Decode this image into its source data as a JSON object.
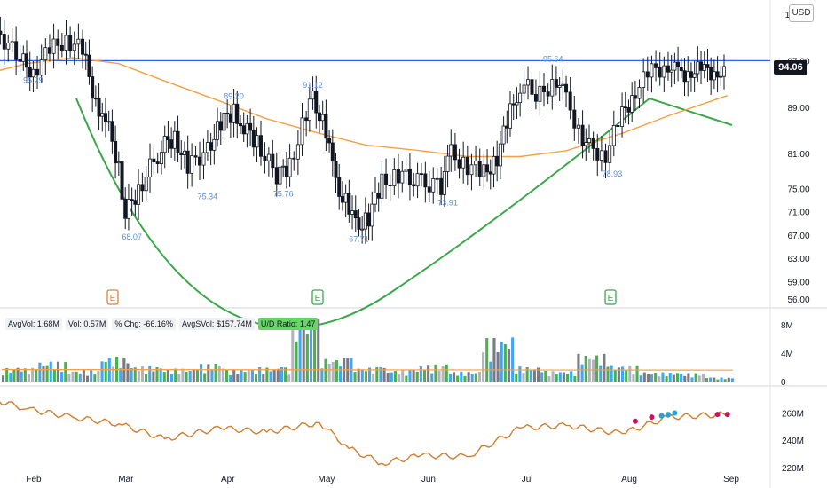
{
  "header": {
    "currency": "USD",
    "last_price": "94.06"
  },
  "volume_stats": {
    "avg_vol": "AvgVol: 1.68M",
    "vol": "Vol: 0.57M",
    "pct_chg": "% Chg: -66.16%",
    "avg_dollar_vol": "AvgSVol: $157.74M",
    "ud_ratio": "U/D Ratio: 1.47"
  },
  "colors": {
    "up": "#ffffff",
    "down": "#131722",
    "ma_price": "#f7a043",
    "resistance": "#2962ff",
    "pattern": "#3aa84a",
    "label": "#5b8fd6",
    "vol_up": "#4caf50",
    "vol_down": "#787b86",
    "vol_gray": "#b2b5be",
    "vol_blue": "#42a5f5",
    "rs_line": "#d07e2f",
    "rs_dot_pink": "#c2185b",
    "rs_dot_blue": "#26a2d6",
    "earnings": "#3aa84a",
    "earnings_old": "#e0813a"
  },
  "chart_data": {
    "type": "line",
    "price_axis": {
      "ticks": [
        "105.00",
        "97.00",
        "89.00",
        "81.00",
        "75.00",
        "71.00",
        "67.00",
        "63.00",
        "59.00",
        "56.00"
      ],
      "range": [
        56,
        105
      ]
    },
    "volume_axis": {
      "ticks": [
        "8M",
        "4M",
        "0"
      ]
    },
    "rs_axis": {
      "ticks": [
        "260M",
        "240M",
        "220M"
      ]
    },
    "x_labels": [
      "Feb",
      "Mar",
      "Apr",
      "May",
      "Jun",
      "Jul",
      "Aug",
      "Sep"
    ],
    "resistance_level": 97.0,
    "price_annotations": [
      "95.29",
      "68.07",
      "89.20",
      "75.34",
      "75.76",
      "91.12",
      "67.71",
      "73.91",
      "95.64",
      "78.93"
    ],
    "earnings_markers": [
      "E",
      "E",
      "E"
    ],
    "price_series": [
      {
        "x": "Jan 18",
        "y": 100.5
      },
      {
        "x": "Jan 24",
        "y": 101.5
      },
      {
        "x": "Jan 30",
        "y": 97.0
      },
      {
        "x": "Feb 3",
        "y": 95.3
      },
      {
        "x": "Feb 8",
        "y": 98.5
      },
      {
        "x": "Feb 13",
        "y": 101.0
      },
      {
        "x": "Feb 18",
        "y": 98.5
      },
      {
        "x": "Feb 22",
        "y": 90.0
      },
      {
        "x": "Feb 25",
        "y": 87.0
      },
      {
        "x": "Mar 1",
        "y": 79.0
      },
      {
        "x": "Mar 3",
        "y": 70.5
      },
      {
        "x": "Mar 7",
        "y": 75.0
      },
      {
        "x": "Mar 14",
        "y": 82.0
      },
      {
        "x": "Mar 18",
        "y": 84.0
      },
      {
        "x": "Mar 22",
        "y": 78.5
      },
      {
        "x": "Mar 28",
        "y": 82.0
      },
      {
        "x": "Apr 1",
        "y": 86.0
      },
      {
        "x": "Apr 5",
        "y": 88.5
      },
      {
        "x": "Apr 8",
        "y": 85.5
      },
      {
        "x": "Apr 12",
        "y": 83.0
      },
      {
        "x": "Apr 18",
        "y": 77.0
      },
      {
        "x": "Apr 22",
        "y": 79.0
      },
      {
        "x": "Apr 27",
        "y": 88.0
      },
      {
        "x": "Apr 29",
        "y": 90.5
      },
      {
        "x": "May 3",
        "y": 85.0
      },
      {
        "x": "May 6",
        "y": 75.5
      },
      {
        "x": "May 10",
        "y": 72.0
      },
      {
        "x": "May 12",
        "y": 68.5
      },
      {
        "x": "May 16",
        "y": 70.0
      },
      {
        "x": "May 20",
        "y": 76.0
      },
      {
        "x": "May 25",
        "y": 77.5
      },
      {
        "x": "Jun 1",
        "y": 76.0
      },
      {
        "x": "Jun 7",
        "y": 75.5
      },
      {
        "x": "Jun 10",
        "y": 81.0
      },
      {
        "x": "Jun 15",
        "y": 79.0
      },
      {
        "x": "Jun 20",
        "y": 77.5
      },
      {
        "x": "Jun 24",
        "y": 80.5
      },
      {
        "x": "Jun 28",
        "y": 88.0
      },
      {
        "x": "Jul 1",
        "y": 93.0
      },
      {
        "x": "Jul 7",
        "y": 91.0
      },
      {
        "x": "Jul 12",
        "y": 94.0
      },
      {
        "x": "Jul 15",
        "y": 90.0
      },
      {
        "x": "Jul 20",
        "y": 84.0
      },
      {
        "x": "Jul 22",
        "y": 82.0
      },
      {
        "x": "Jul 27",
        "y": 81.0
      },
      {
        "x": "Aug 1",
        "y": 87.5
      },
      {
        "x": "Aug 5",
        "y": 92.0
      },
      {
        "x": "Aug 10",
        "y": 95.0
      },
      {
        "x": "Aug 15",
        "y": 96.5
      },
      {
        "x": "Aug 18",
        "y": 94.5
      },
      {
        "x": "Aug 22",
        "y": 95.5
      },
      {
        "x": "Aug 26",
        "y": 95.0
      },
      {
        "x": "Aug 30",
        "y": 95.5
      },
      {
        "x": "Sep 2",
        "y": 94.0
      }
    ],
    "moving_average": [
      {
        "x": "Jan 18",
        "y": 94.5
      },
      {
        "x": "Feb 1",
        "y": 96.5
      },
      {
        "x": "Feb 15",
        "y": 97.5
      },
      {
        "x": "Mar 1",
        "y": 96.5
      },
      {
        "x": "Mar 15",
        "y": 93.5
      },
      {
        "x": "Apr 1",
        "y": 90.0
      },
      {
        "x": "Apr 15",
        "y": 87.0
      },
      {
        "x": "May 1",
        "y": 84.5
      },
      {
        "x": "May 15",
        "y": 82.5
      },
      {
        "x": "Jun 1",
        "y": 81.5
      },
      {
        "x": "Jun 15",
        "y": 80.5
      },
      {
        "x": "Jul 1",
        "y": 80.5
      },
      {
        "x": "Jul 15",
        "y": 81.5
      },
      {
        "x": "Aug 1",
        "y": 84.5
      },
      {
        "x": "Aug 15",
        "y": 87.5
      },
      {
        "x": "Sep 2",
        "y": 91.0
      }
    ],
    "volume": [
      {
        "x": "Feb",
        "v": 1.9
      },
      {
        "x": "Feb",
        "v": 2.8
      },
      {
        "x": "Feb",
        "v": 1.6
      },
      {
        "x": "Mar",
        "v": 3.5
      },
      {
        "x": "Mar",
        "v": 2.2
      },
      {
        "x": "Mar",
        "v": 1.8
      },
      {
        "x": "Apr",
        "v": 2.5
      },
      {
        "x": "Apr",
        "v": 1.7
      },
      {
        "x": "Apr",
        "v": 2.0
      },
      {
        "x": "May",
        "v": 8.8
      },
      {
        "x": "May",
        "v": 3.3
      },
      {
        "x": "May",
        "v": 2.0
      },
      {
        "x": "Jun",
        "v": 1.6
      },
      {
        "x": "Jun",
        "v": 2.4
      },
      {
        "x": "Jun",
        "v": 1.4
      },
      {
        "x": "Jul",
        "v": 6.2
      },
      {
        "x": "Jul",
        "v": 2.1
      },
      {
        "x": "Jul",
        "v": 1.5
      },
      {
        "x": "Aug",
        "v": 3.9
      },
      {
        "x": "Aug",
        "v": 2.3
      },
      {
        "x": "Aug",
        "v": 1.3
      },
      {
        "x": "Sep",
        "v": 1.2
      },
      {
        "x": "Sep",
        "v": 0.57
      }
    ],
    "rs_line": [
      {
        "x": "Jan 18",
        "y": 273
      },
      {
        "x": "Feb 1",
        "y": 263
      },
      {
        "x": "Feb 15",
        "y": 257
      },
      {
        "x": "Mar 1",
        "y": 252
      },
      {
        "x": "Mar 15",
        "y": 241
      },
      {
        "x": "Apr 1",
        "y": 249
      },
      {
        "x": "Apr 15",
        "y": 246
      },
      {
        "x": "May 1",
        "y": 253
      },
      {
        "x": "May 10",
        "y": 234
      },
      {
        "x": "May 20",
        "y": 223
      },
      {
        "x": "Jun 1",
        "y": 229
      },
      {
        "x": "Jun 15",
        "y": 228
      },
      {
        "x": "Jul 1",
        "y": 249
      },
      {
        "x": "Jul 15",
        "y": 251
      },
      {
        "x": "Aug 1",
        "y": 245
      },
      {
        "x": "Aug 15",
        "y": 257
      },
      {
        "x": "Sep 2",
        "y": 259
      }
    ]
  }
}
